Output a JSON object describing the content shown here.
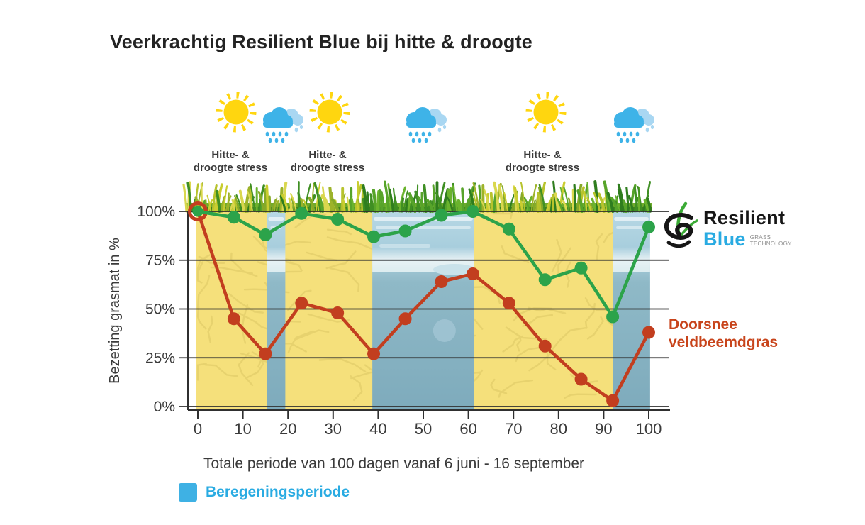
{
  "title": "Veerkrachtig Resilient Blue bij hitte & droogte",
  "stress_labels": [
    "Hitte- &\ndroogte stress",
    "Hitte- &\ndroogte stress",
    "Hitte- &\ndroogte stress"
  ],
  "weather_icons": [
    "sun",
    "rain-cloud",
    "sun",
    "rain-cloud",
    "sun",
    "rain-cloud"
  ],
  "logo": {
    "brand_top": "Resilient",
    "brand_bottom": "Blue",
    "tagline": "GRASS\nTECHNOLOGY"
  },
  "annotations": {
    "red_series_label": "Doorsnee\nveldbeemdgras"
  },
  "legend": {
    "label": "Beregeningsperiode",
    "color": "#3EB1E4"
  },
  "colors": {
    "resilient_green": "#2CA34A",
    "veldbeemd_red": "#C23E1F",
    "irrigation_blue": "#3EB1E4",
    "drought_yellow": "#F5E07B",
    "sun_yellow": "#FFD60F",
    "cloud_blue": "#3EB3E8"
  },
  "chart_data": {
    "type": "line",
    "title": "Veerkrachtig Resilient Blue bij hitte & droogte",
    "ylabel": "Bezetting grasmat in %",
    "xlabel": "Totale periode van 100 dagen vanaf 6 juni - 16 september",
    "xlim": [
      0,
      100
    ],
    "ylim": [
      0,
      100
    ],
    "grid": true,
    "x_ticks": [
      0,
      10,
      20,
      30,
      40,
      50,
      60,
      70,
      80,
      90,
      100
    ],
    "y_ticks": [
      0,
      25,
      50,
      75,
      100
    ],
    "y_tick_labels": [
      "0%",
      "25%",
      "50%",
      "75%",
      "100%"
    ],
    "x": [
      0,
      8,
      15,
      23,
      31,
      39,
      46,
      54,
      61,
      69,
      77,
      85,
      92,
      100
    ],
    "series": [
      {
        "name": "Resilient Blue",
        "color": "#2CA34A",
        "values": [
          100,
          97,
          88,
          99,
          96,
          87,
          90,
          98,
          100,
          91,
          65,
          71,
          46,
          92
        ]
      },
      {
        "name": "Doorsnee veldbeemdgras",
        "color": "#C23E1F",
        "values": [
          100,
          45,
          27,
          53,
          48,
          27,
          45,
          64,
          68,
          53,
          31,
          14,
          3,
          38
        ]
      }
    ],
    "irrigation_bands": [
      [
        15.3,
        19.4
      ],
      [
        38.7,
        61.3
      ],
      [
        92,
        100.3
      ]
    ],
    "legend_entries": [
      {
        "label": "Beregeningsperiode",
        "color": "#3EB1E4"
      }
    ],
    "legend_position": "bottom-left"
  }
}
